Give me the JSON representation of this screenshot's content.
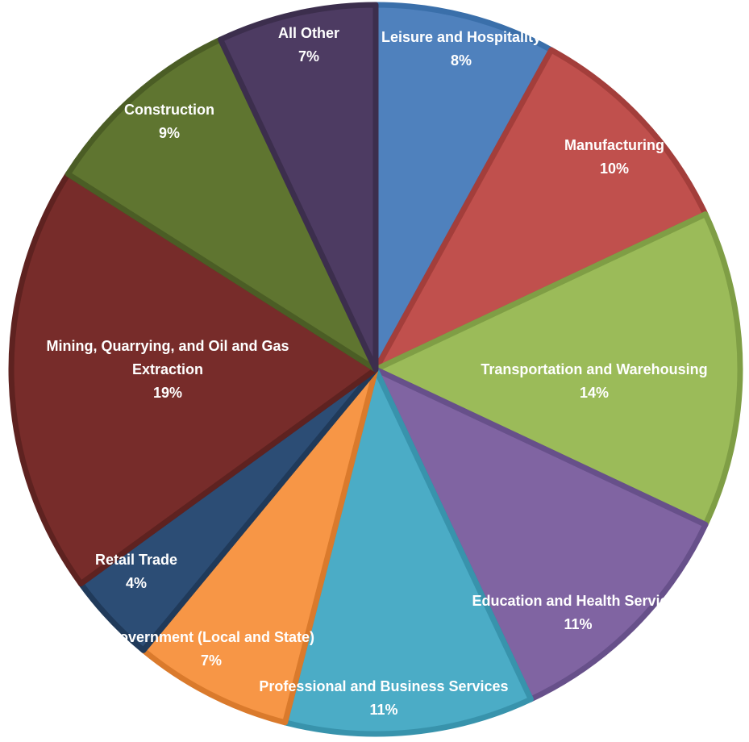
{
  "chart_data": {
    "type": "pie",
    "slices": [
      {
        "label": "Leisure and Hospitality",
        "label_lines": [
          "Leisure and Hospitality"
        ],
        "value": 8,
        "percent_label": "8%",
        "color": "#4F81BD",
        "border": "#3A6FAA"
      },
      {
        "label": "Manufacturing",
        "label_lines": [
          "Manufacturing"
        ],
        "value": 10,
        "percent_label": "10%",
        "color": "#C0504D",
        "border": "#A33E3B"
      },
      {
        "label": "Transportation and Warehousing",
        "label_lines": [
          "Transportation and Warehousing"
        ],
        "value": 14,
        "percent_label": "14%",
        "color": "#9BBB59",
        "border": "#7F9E45"
      },
      {
        "label": "Education and Health Services",
        "label_lines": [
          "Education and Health Services"
        ],
        "value": 11,
        "percent_label": "11%",
        "color": "#8064A2",
        "border": "#67508A"
      },
      {
        "label": "Professional and Business Services",
        "label_lines": [
          "Professional and Business Services"
        ],
        "value": 11,
        "percent_label": "11%",
        "color": "#4BACC6",
        "border": "#3893AC"
      },
      {
        "label": "Government (Local and State)",
        "label_lines": [
          "Government (Local and State)"
        ],
        "value": 7,
        "percent_label": "7%",
        "color": "#F79646",
        "border": "#DA7A2C"
      },
      {
        "label": "Retail Trade",
        "label_lines": [
          "Retail Trade"
        ],
        "value": 4,
        "percent_label": "4%",
        "color": "#2C4D75",
        "border": "#203A5A"
      },
      {
        "label": "Mining, Quarrying, and Oil and Gas Extraction",
        "label_lines": [
          "Mining, Quarrying, and Oil and Gas",
          "Extraction"
        ],
        "value": 19,
        "percent_label": "19%",
        "color": "#772C2A",
        "border": "#5E2220"
      },
      {
        "label": "Construction",
        "label_lines": [
          "Construction"
        ],
        "value": 9,
        "percent_label": "9%",
        "color": "#5F7530",
        "border": "#4B5D25"
      },
      {
        "label": "All Other",
        "label_lines": [
          "All Other"
        ],
        "value": 7,
        "percent_label": "7%",
        "color": "#4D3B62",
        "border": "#3C2E4D"
      }
    ],
    "start_angle_deg": 0,
    "direction": "clockwise",
    "legend": "none",
    "title": ""
  }
}
